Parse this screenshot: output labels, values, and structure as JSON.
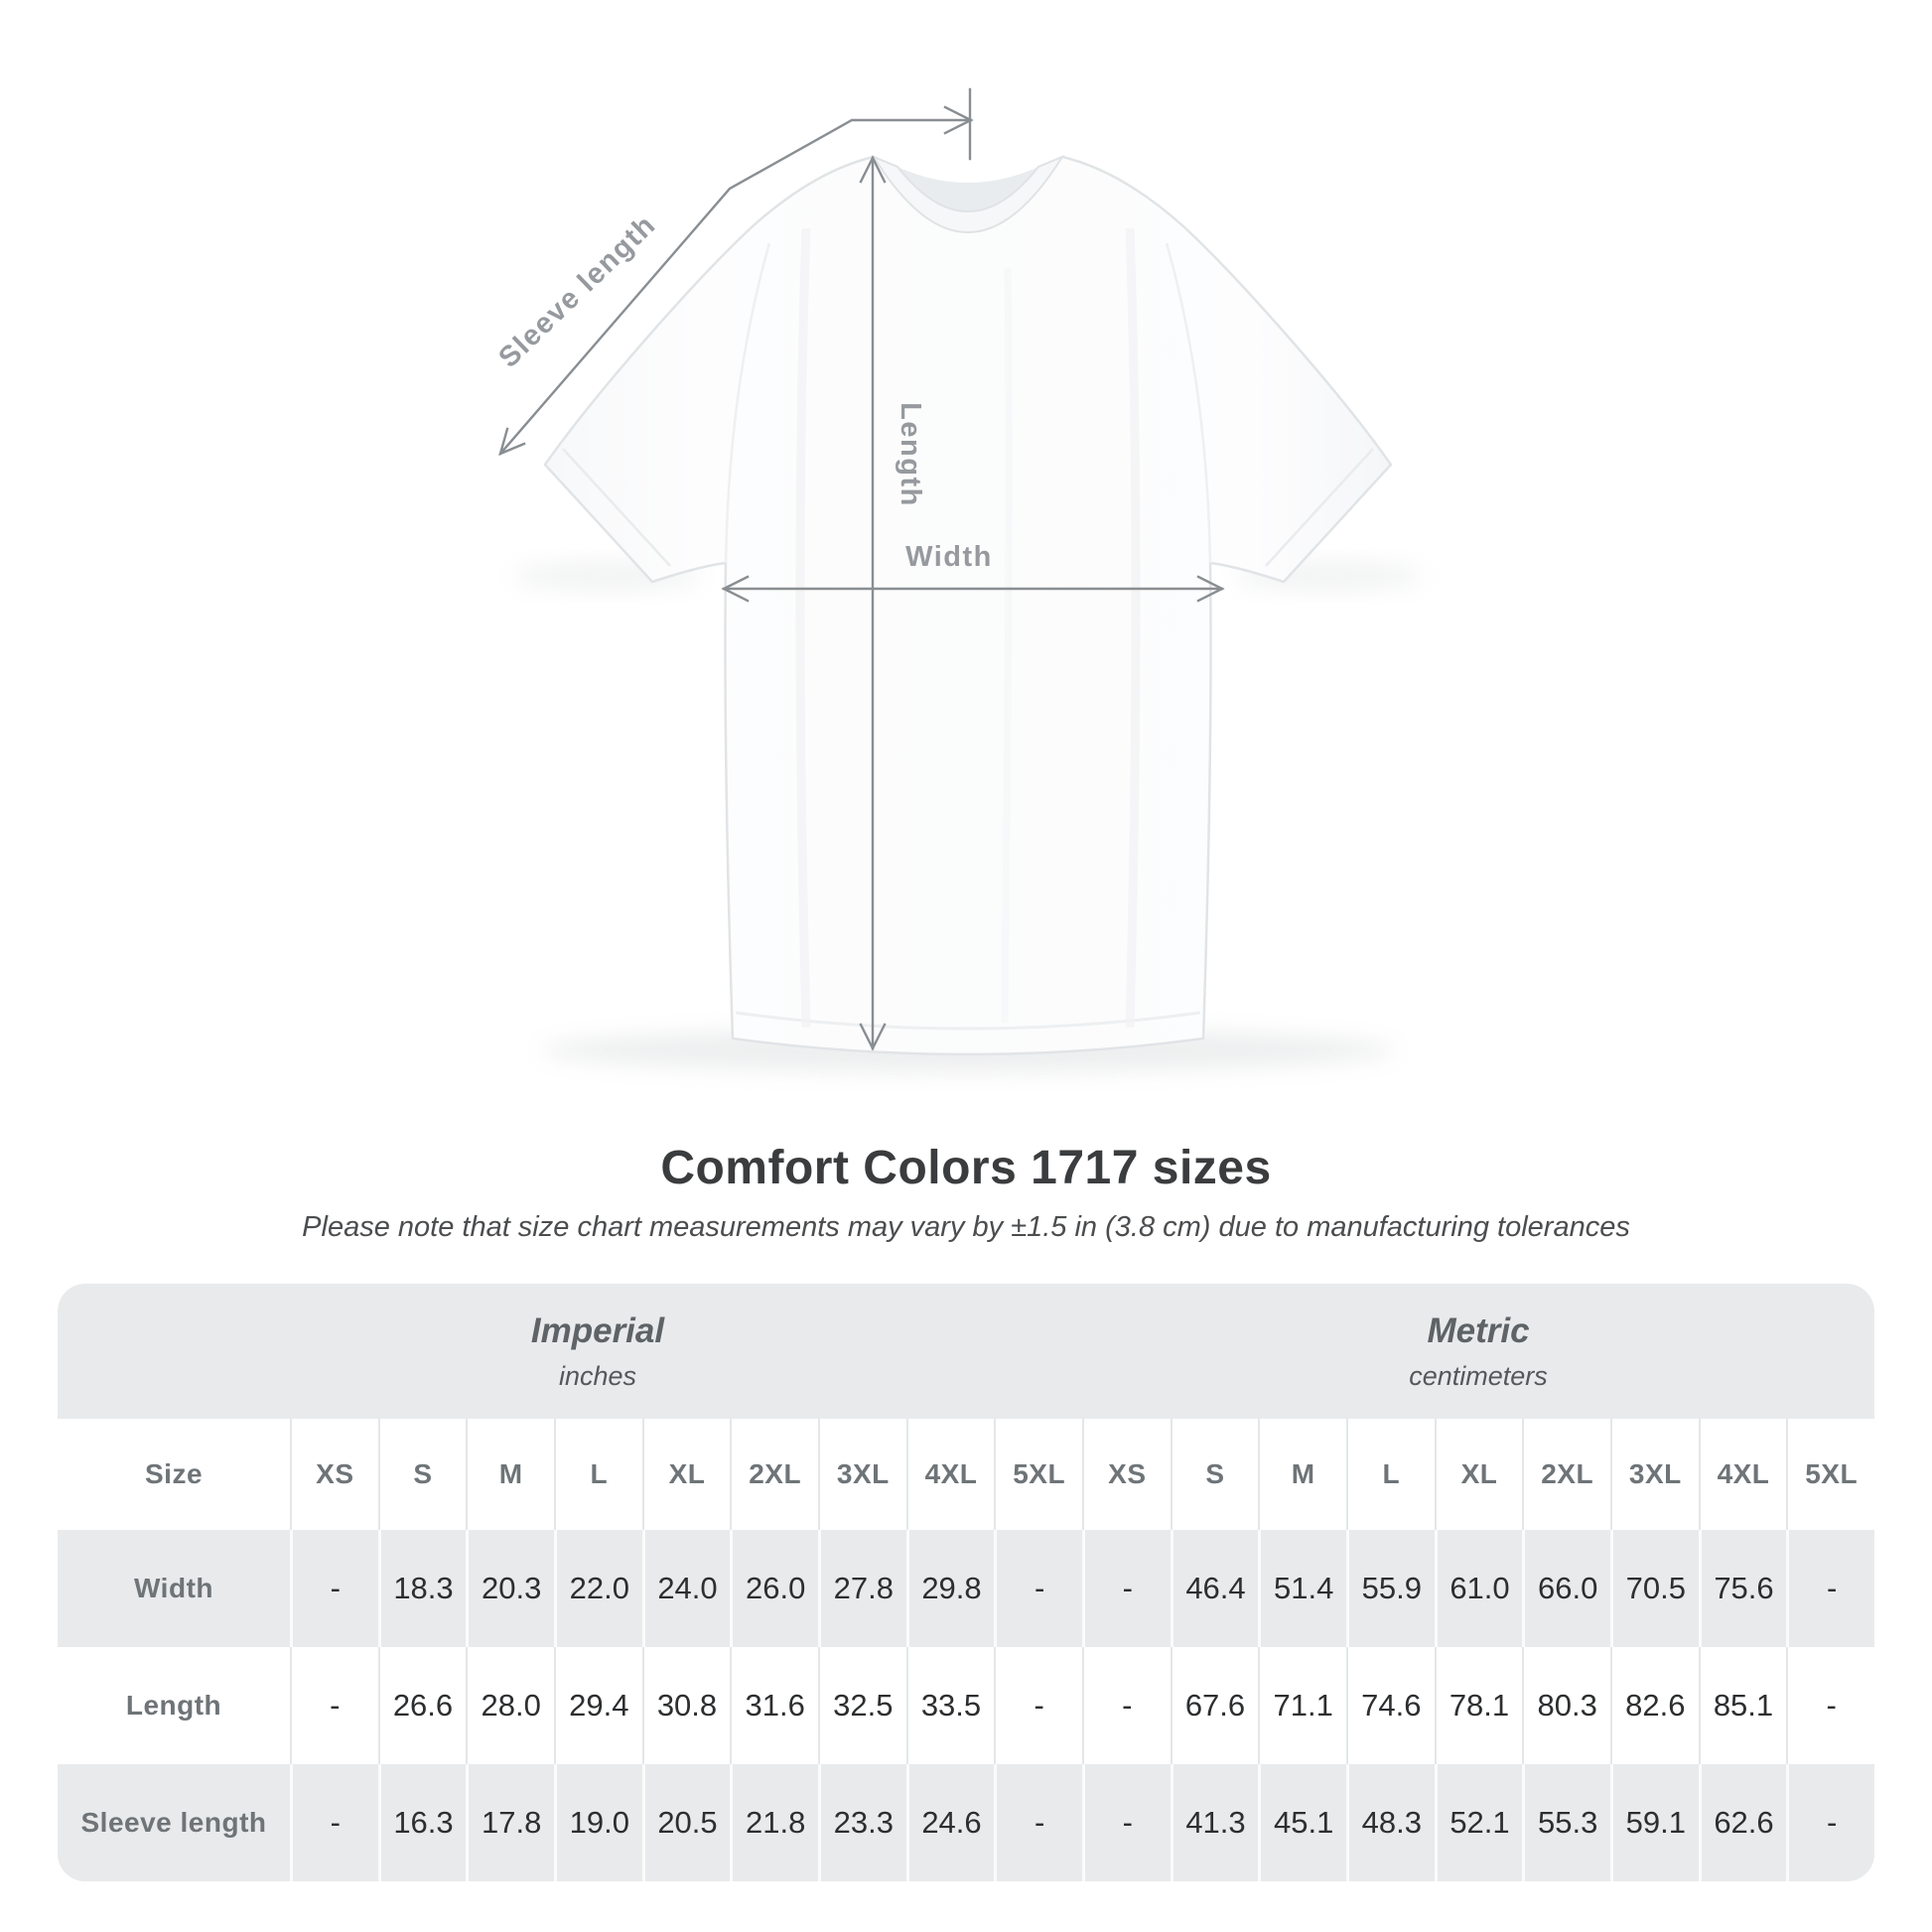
{
  "diagram": {
    "sleeve_label": "Sleeve length",
    "length_label": "Length",
    "width_label": "Width",
    "line_color": "#898e92",
    "label_color": "#969a9e"
  },
  "heading": {
    "title": "Comfort Colors 1717 sizes",
    "subtitle": "Please note that size chart measurements may vary by ±1.5 in (3.8 cm) due to manufacturing tolerances"
  },
  "chart_data": {
    "type": "table",
    "title": "Comfort Colors 1717 sizes",
    "corner_header": "Size",
    "unit_groups": [
      {
        "label": "Imperial",
        "unit": "inches",
        "sizes": [
          "XS",
          "S",
          "M",
          "L",
          "XL",
          "2XL",
          "3XL",
          "4XL",
          "5XL"
        ]
      },
      {
        "label": "Metric",
        "unit": "centimeters",
        "sizes": [
          "XS",
          "S",
          "M",
          "L",
          "XL",
          "2XL",
          "3XL",
          "4XL",
          "5XL"
        ]
      }
    ],
    "rows": [
      {
        "label": "Width",
        "imperial": [
          "-",
          "18.3",
          "20.3",
          "22.0",
          "24.0",
          "26.0",
          "27.8",
          "29.8",
          "-"
        ],
        "metric": [
          "-",
          "46.4",
          "51.4",
          "55.9",
          "61.0",
          "66.0",
          "70.5",
          "75.6",
          "-"
        ]
      },
      {
        "label": "Length",
        "imperial": [
          "-",
          "26.6",
          "28.0",
          "29.4",
          "30.8",
          "31.6",
          "32.5",
          "33.5",
          "-"
        ],
        "metric": [
          "-",
          "67.6",
          "71.1",
          "74.6",
          "78.1",
          "80.3",
          "82.6",
          "85.1",
          "-"
        ]
      },
      {
        "label": "Sleeve length",
        "imperial": [
          "-",
          "16.3",
          "17.8",
          "19.0",
          "20.5",
          "21.8",
          "23.3",
          "24.6",
          "-"
        ],
        "metric": [
          "-",
          "41.3",
          "45.1",
          "48.3",
          "52.1",
          "55.3",
          "59.1",
          "62.6",
          "-"
        ]
      }
    ]
  },
  "colors": {
    "panel_bg": "#e9eaeb",
    "row_alt_bg": "#ffffff",
    "separator_on_white": "#e4e7e8",
    "separator_on_gray": "#fafbfb",
    "header_text": "#6e7477",
    "value_text": "#2c2e30",
    "title_text": "#3a3c3e",
    "subtitle_text": "#4b4d4f",
    "group_header_text": "#5d6366"
  }
}
